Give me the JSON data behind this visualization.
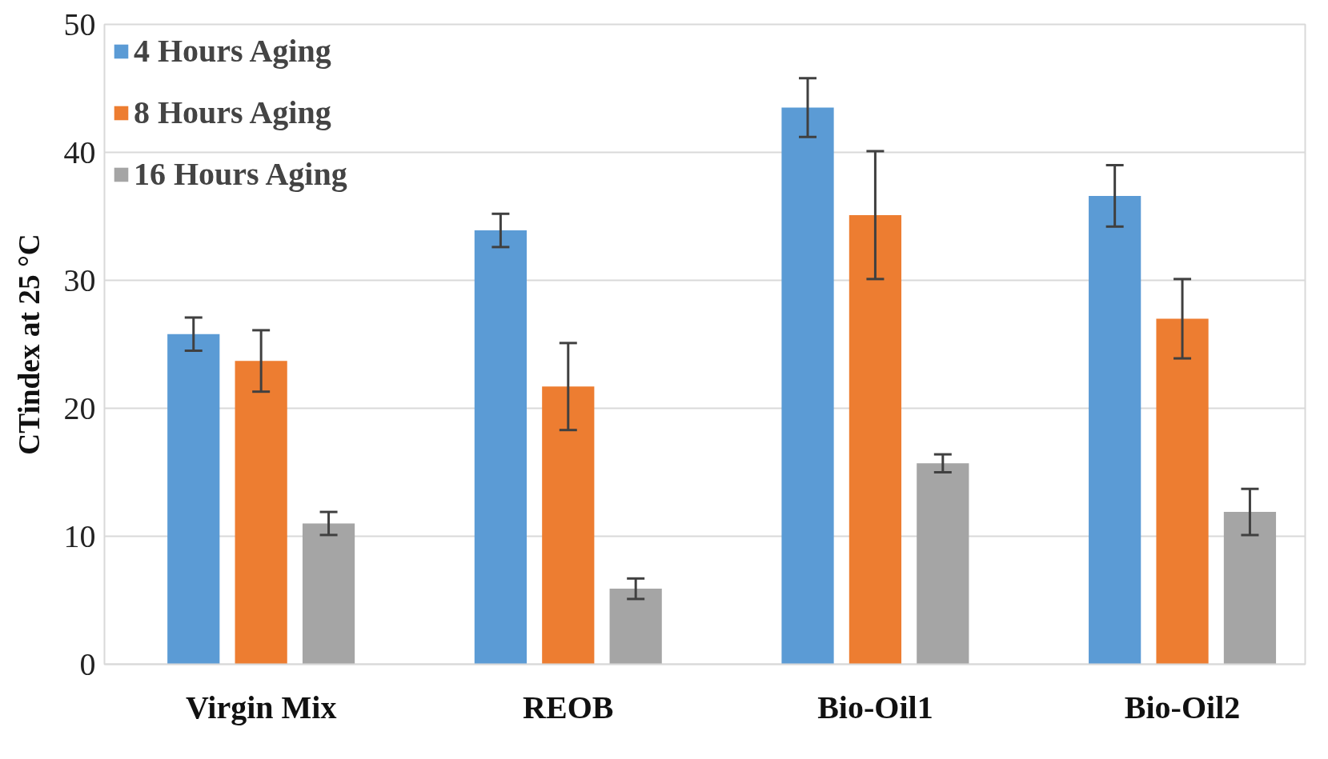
{
  "chart_data": {
    "type": "bar",
    "ylabel": "CTindex at 25 °C",
    "categories": [
      "Virgin Mix",
      "REOB",
      "Bio-Oil1",
      "Bio-Oil2"
    ],
    "series": [
      {
        "name": "4 Hours Aging",
        "color": "#5b9bd5",
        "values": [
          25.8,
          33.9,
          43.5,
          36.6
        ],
        "errors": [
          1.3,
          1.3,
          2.3,
          2.4
        ]
      },
      {
        "name": "8 Hours Aging",
        "color": "#ed7d31",
        "values": [
          23.7,
          21.7,
          35.1,
          27.0
        ],
        "errors": [
          2.4,
          3.4,
          5.0,
          3.1
        ]
      },
      {
        "name": "16 Hours Aging",
        "color": "#a5a5a5",
        "values": [
          11.0,
          5.9,
          15.7,
          11.9
        ],
        "errors": [
          0.9,
          0.8,
          0.7,
          1.8
        ]
      }
    ],
    "ylim": [
      0,
      50
    ],
    "yticks": [
      0,
      10,
      20,
      30,
      40,
      50
    ],
    "grid": "y",
    "legend": "top left"
  }
}
